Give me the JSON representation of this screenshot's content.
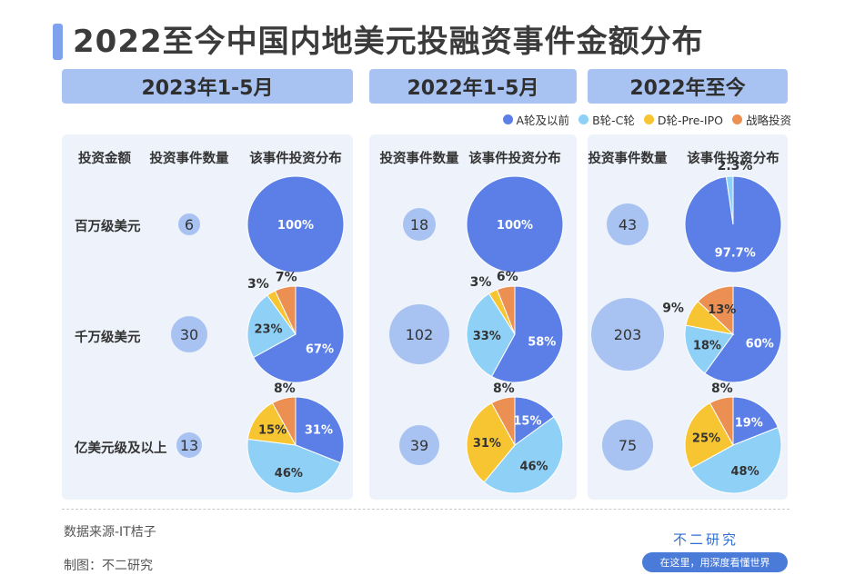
{
  "title": "2022至今中国内地美元投融资事件金额分布",
  "periods": [
    "2023年1-5月",
    "2022年1-5月",
    "2022年至今"
  ],
  "legend": [
    {
      "label": "A轮及以前",
      "color": "#5b7fe6"
    },
    {
      "label": "B轮-C轮",
      "color": "#8fd0f7"
    },
    {
      "label": "D轮-Pre-IPO",
      "color": "#f7c531"
    },
    {
      "label": "战略投资",
      "color": "#ec8f52"
    }
  ],
  "column_headers": {
    "amount": "投资金额",
    "count": "投资事件数量",
    "distribution": "该事件投资分布"
  },
  "row_labels": [
    "百万级美元",
    "千万级美元",
    "亿美元级及以上"
  ],
  "footer": {
    "source": "数据来源-IT桔子",
    "maker": "制图：不二研究",
    "brand": "不二研究",
    "brand_sub": "在这里，用深度看懂世界"
  },
  "chart_data": {
    "type": "pie",
    "title": "2022至今中国内地美元投融资事件金额分布",
    "series_names": [
      "A轮及以前",
      "B轮-C轮",
      "D轮-Pre-IPO",
      "战略投资"
    ],
    "periods": [
      "2023年1-5月",
      "2022年1-5月",
      "2022年至今"
    ],
    "rows": [
      "百万级美元",
      "千万级美元",
      "亿美元级及以上"
    ],
    "counts": [
      [
        6,
        30,
        13
      ],
      [
        18,
        102,
        39
      ],
      [
        43,
        203,
        75
      ]
    ],
    "distributions": [
      [
        [
          100,
          0,
          0,
          0
        ],
        [
          67,
          23,
          3,
          7
        ],
        [
          31,
          46,
          15,
          8
        ]
      ],
      [
        [
          100,
          0,
          0,
          0
        ],
        [
          58,
          33,
          3,
          6
        ],
        [
          15,
          46,
          31,
          8
        ]
      ],
      [
        [
          97.7,
          2.3,
          0,
          0
        ],
        [
          60,
          18,
          9,
          13
        ],
        [
          19,
          48,
          25,
          8
        ]
      ]
    ],
    "labels": [
      [
        [
          "100%"
        ],
        [
          "67%",
          "23%",
          "3%",
          "7%"
        ],
        [
          "31%",
          "46%",
          "15%",
          "8%"
        ]
      ],
      [
        [
          "100%"
        ],
        [
          "58%",
          "33%",
          "3%",
          "6%"
        ],
        [
          "15%",
          "46%",
          "31%",
          "8%"
        ]
      ],
      [
        [
          "97.7%",
          "2.3%"
        ],
        [
          "60%",
          "18%",
          "9%",
          "13%"
        ],
        [
          "19%",
          "48%",
          "25%",
          "8%"
        ]
      ]
    ]
  }
}
